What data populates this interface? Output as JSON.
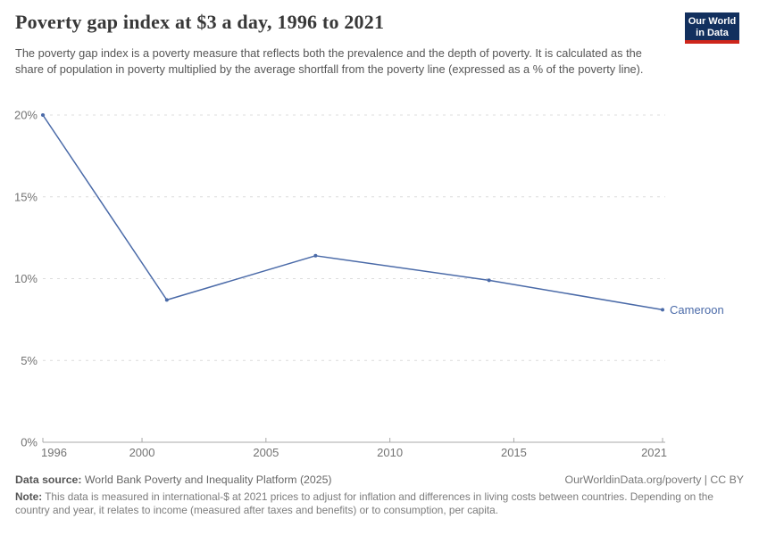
{
  "header": {
    "title": "Poverty gap index at $3 a day, 1996 to 2021",
    "subtitle": "The poverty gap index is a poverty measure that reflects both the prevalence and the depth of poverty. It is calculated as the share of population in poverty multiplied by the average shortfall from the poverty line (expressed as a % of the poverty line).",
    "logo": {
      "line1": "Our World",
      "line2": "in Data"
    }
  },
  "colors": {
    "line": "#4A6AA8",
    "title_text": "#383838",
    "subtitle_text": "#555555",
    "axis_text": "#737373",
    "gridline": "#dcdcdc",
    "axis_line": "#a8a8a8",
    "logo_bg": "#12305E",
    "logo_red": "#CE261B"
  },
  "chart_data": {
    "type": "line",
    "title": "Poverty gap index at $3 a day, 1996 to 2021",
    "xlabel": "",
    "ylabel": "",
    "xlim": [
      1996,
      2021
    ],
    "ylim": [
      0,
      20
    ],
    "x_ticks": [
      1996,
      2000,
      2005,
      2010,
      2015,
      2021
    ],
    "y_ticks": [
      0,
      5,
      10,
      15,
      20
    ],
    "y_tick_suffix": "%",
    "grid": "horizontal-dashed",
    "legend_position": "end-of-line-label",
    "series": [
      {
        "name": "Cameroon",
        "color": "#4A6AA8",
        "x": [
          1996,
          2001,
          2007,
          2014,
          2021
        ],
        "y": [
          20,
          8.7,
          11.4,
          9.9,
          8.1
        ]
      }
    ]
  },
  "footer": {
    "datasource_label": "Data source:",
    "datasource_value": " World Bank Poverty and Inequality Platform (2025)",
    "credit": "OurWorldinData.org/poverty | CC BY",
    "note_label": "Note:",
    "note_text": " This data is measured in international-$ at 2021 prices to adjust for inflation and differences in living costs between countries. Depending on the country and year, it relates to income (measured after taxes and benefits) or to consumption, per capita."
  }
}
